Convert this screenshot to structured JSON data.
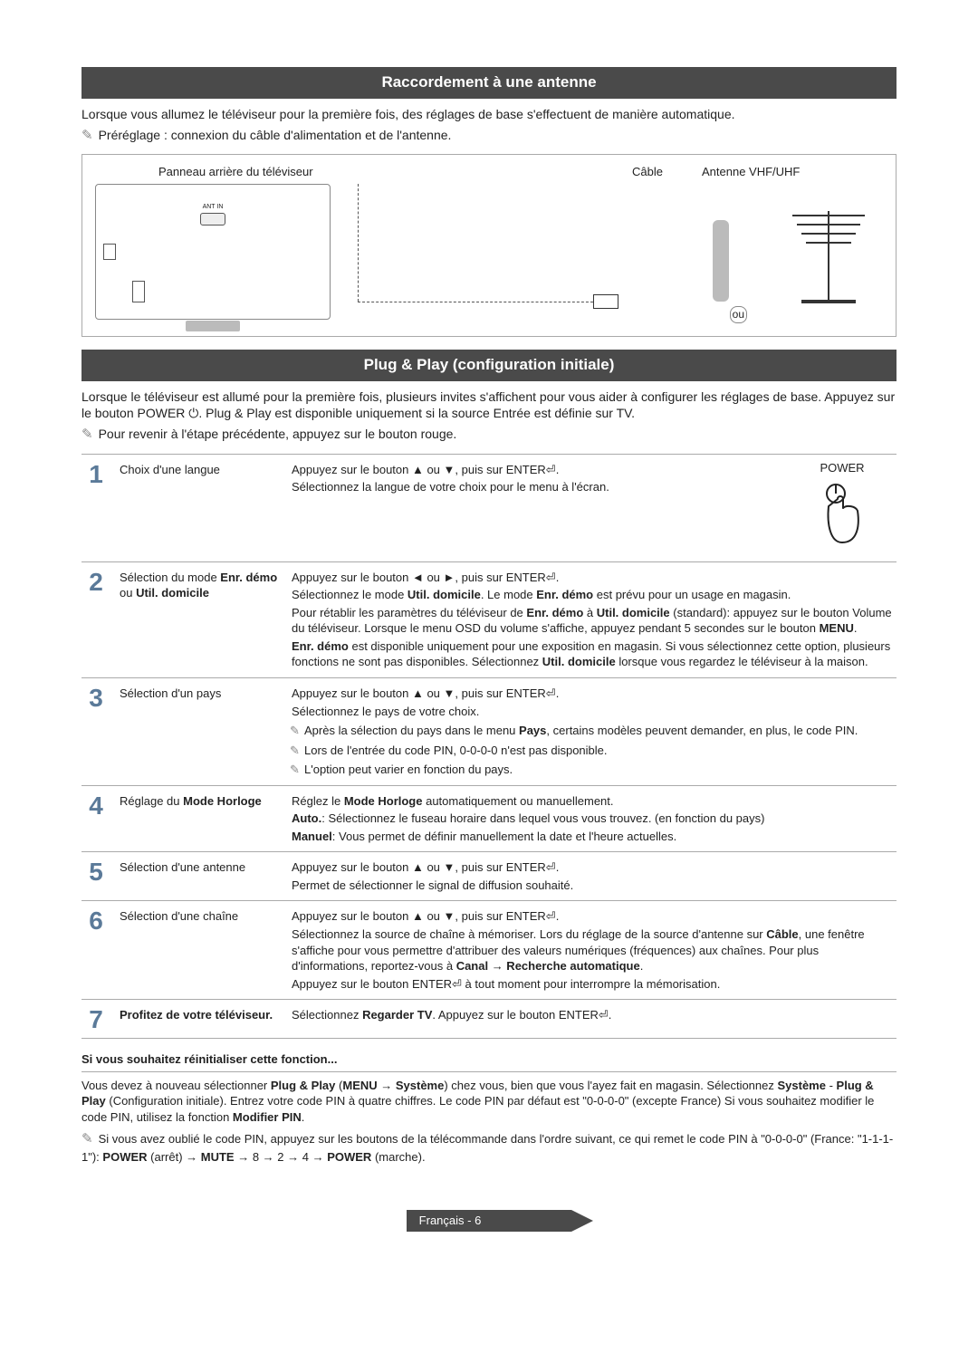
{
  "sections": {
    "antenna": {
      "title": "Raccordement à une antenne",
      "intro": "Lorsque vous allumez le téléviseur pour la première fois, des réglages de base s'effectuent de manière automatique.",
      "note": "Préréglage : connexion du câble d'alimentation et de l'antenne.",
      "labels": {
        "rear": "Panneau arrière du téléviseur",
        "cable": "Câble",
        "antenna": "Antenne VHF/UHF",
        "port": "ANT IN",
        "or": "ou"
      }
    },
    "plugplay": {
      "title": "Plug & Play (configuration initiale)",
      "intro": "Lorsque le téléviseur est allumé pour la première fois, plusieurs invites s'affichent pour vous aider à configurer les réglages de base. Appuyez sur le bouton POWER ⏻. Plug & Play est disponible uniquement si la source Entrée est définie sur TV.",
      "note": "Pour revenir à l'étape précédente, appuyez sur le bouton rouge.",
      "power_label": "POWER"
    }
  },
  "steps": [
    {
      "num": "1",
      "label": "Choix d'une langue",
      "body": [
        "Appuyez sur le bouton ▲ ou ▼, puis sur ENTER⏎.",
        "Sélectionnez la langue de votre choix pour le menu à l'écran."
      ]
    },
    {
      "num": "2",
      "label_html": "Sélection du mode <b>Enr. démo</b> ou <b>Util. domicile</b>",
      "body": [
        "Appuyez sur le bouton ◄ ou ►, puis sur ENTER⏎.",
        "Sélectionnez le mode <b>Util. domicile</b>. Le mode <b>Enr. démo</b> est prévu pour un usage en magasin.",
        "Pour rétablir les paramètres du téléviseur de <b>Enr. démo</b> à <b>Util. domicile</b> (standard): appuyez sur le bouton Volume du téléviseur. Lorsque le menu OSD du volume s'affiche, appuyez pendant 5 secondes sur le bouton <b>MENU</b>.",
        "<b>Enr. démo</b> est disponible uniquement pour une exposition en magasin. Si vous sélectionnez cette option, plusieurs fonctions ne sont pas disponibles. Sélectionnez <b>Util. domicile</b> lorsque vous regardez le téléviseur à la maison."
      ]
    },
    {
      "num": "3",
      "label": "Sélection d'un pays",
      "body": [
        "Appuyez sur le bouton ▲ ou ▼, puis sur ENTER⏎.",
        "Sélectionnez le pays de votre choix."
      ],
      "notes": [
        "Après la sélection du pays dans le menu <b>Pays</b>, certains modèles peuvent demander, en plus, le code PIN.",
        "Lors de l'entrée du code PIN, 0-0-0-0 n'est pas disponible.",
        "L'option peut varier en fonction du pays."
      ]
    },
    {
      "num": "4",
      "label_html": "Réglage du <b>Mode Horloge</b>",
      "body": [
        "Réglez le <b>Mode Horloge</b> automatiquement ou manuellement.",
        "<b>Auto.</b>: Sélectionnez le fuseau horaire dans lequel vous vous trouvez. (en fonction du pays)",
        "<b>Manuel</b>: Vous permet de définir manuellement la date et l'heure actuelles."
      ]
    },
    {
      "num": "5",
      "label": "Sélection d'une antenne",
      "body": [
        "Appuyez sur le bouton ▲ ou ▼, puis sur ENTER⏎.",
        "Permet de sélectionner le signal de diffusion souhaité."
      ]
    },
    {
      "num": "6",
      "label": "Sélection d'une chaîne",
      "body": [
        "Appuyez sur le bouton ▲ ou ▼, puis sur ENTER⏎.",
        "Sélectionnez la source de chaîne à mémoriser. Lors du réglage de la source d'antenne sur <b>Câble</b>, une fenêtre s'affiche pour vous permettre d'attribuer des valeurs numériques (fréquences) aux chaînes. Pour plus d'informations, reportez-vous à <b>Canal → Recherche automatique</b>.",
        "Appuyez sur le bouton ENTER⏎ à tout moment pour interrompre la mémorisation."
      ]
    },
    {
      "num": "7",
      "label_html": "<b>Profitez de votre téléviseur.</b>",
      "body": [
        "Sélectionnez <b>Regarder TV</b>. Appuyez sur le bouton ENTER⏎."
      ]
    }
  ],
  "reset": {
    "title": "Si vous souhaitez réinitialiser cette fonction...",
    "para": "Vous devez à nouveau sélectionner <b>Plug & Play</b> (<b>MENU → Système</b>) chez vous, bien que vous l'ayez fait en magasin. Sélectionnez <b>Système</b> - <b>Plug & Play</b> (Configuration initiale). Entrez votre code PIN à quatre chiffres. Le code PIN par défaut est \"0-0-0-0\" (excepte France) Si vous souhaitez modifier le code PIN, utilisez la fonction <b>Modifier PIN</b>.",
    "note": "Si vous avez oublié le code PIN, appuyez sur les boutons de la télécommande dans l'ordre suivant, ce qui remet le code PIN à \"0-0-0-0\" (France: \"1-1-1-1\"): <b>POWER</b> (arrêt) → <b>MUTE</b> → 8 → 2 → 4 → <b>POWER</b> (marche)."
  },
  "footer": {
    "lang": "Français - 6"
  },
  "colors": {
    "header_bg": "#4a4a4a",
    "header_fg": "#ffffff",
    "step_num": "#5b7a99",
    "rule": "#aaaaaa"
  }
}
